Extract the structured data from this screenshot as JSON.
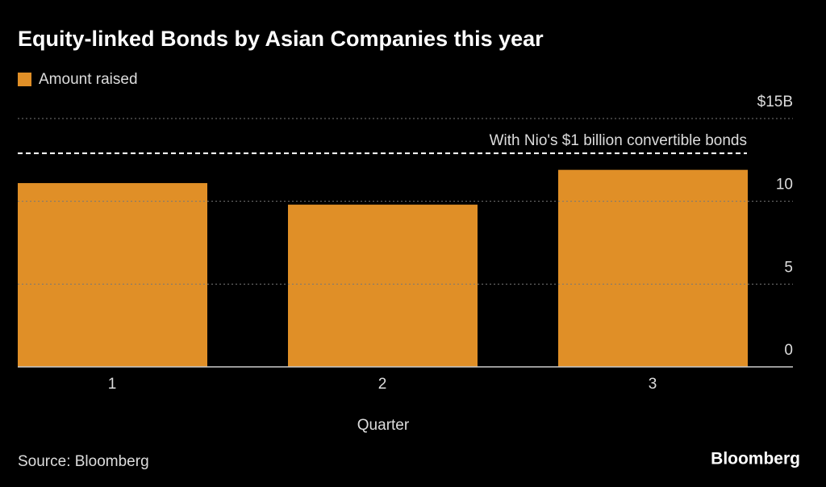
{
  "chart_data": {
    "type": "bar",
    "title": "Equity-linked Bonds by Asian Companies this year",
    "series": [
      {
        "name": "Amount raised",
        "color": "#e08f27",
        "values": [
          11.1,
          9.8,
          11.9
        ]
      }
    ],
    "categories": [
      "1",
      "2",
      "3"
    ],
    "x_label": "Quarter",
    "ylim": [
      0,
      15
    ],
    "yticks": [
      0,
      5,
      10,
      {
        "value": 15,
        "label": "$15B"
      }
    ],
    "grid": true,
    "reference_line": {
      "value": 12.9,
      "label": "With Nio's $1 billion convertible bonds"
    },
    "source": "Source: Bloomberg",
    "brand": "Bloomberg"
  }
}
